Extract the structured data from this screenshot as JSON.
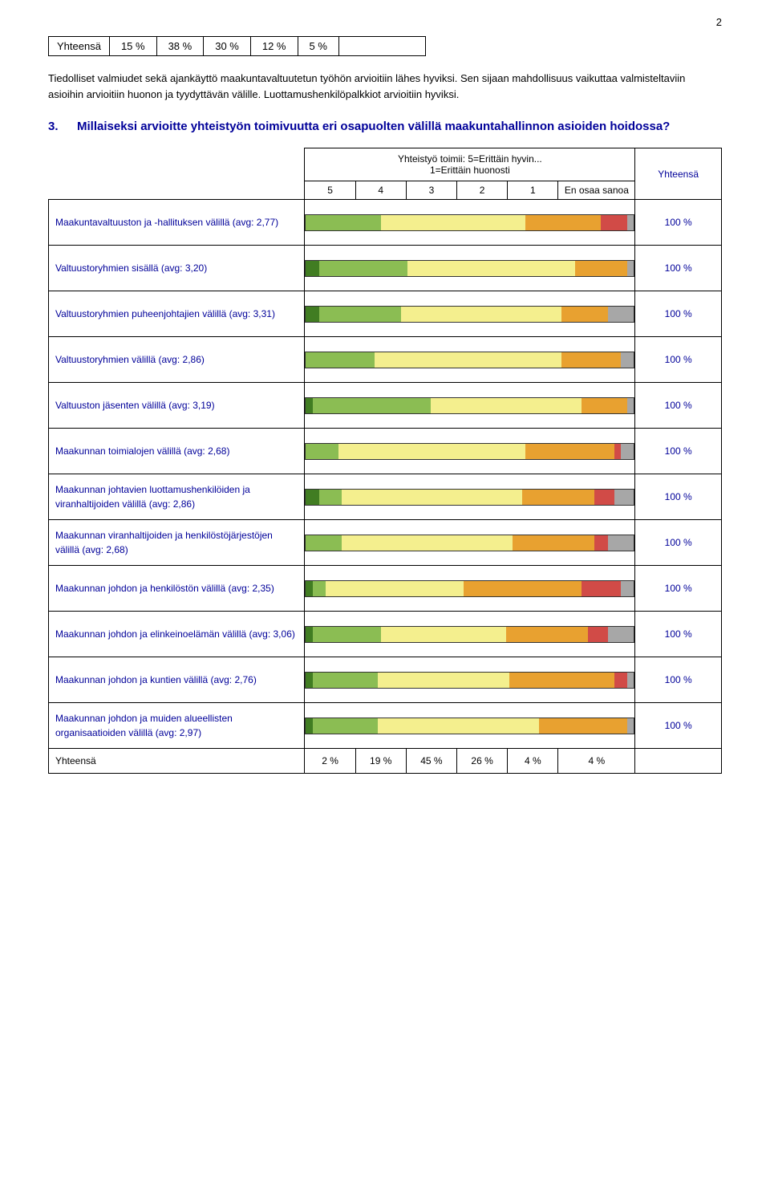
{
  "page_number": "2",
  "simple_table": {
    "label": "Yhteensä",
    "values": [
      "15 %",
      "38 %",
      "30 %",
      "12 %",
      "5 %"
    ]
  },
  "paragraph": "Tiedolliset valmiudet sekä ajankäyttö maakuntavaltuutetun työhön arvioitiin lähes hyviksi. Sen sijaan mahdollisuus vaikuttaa valmisteltaviin asioihin arvioitiin huonon ja tyydyttävän välille. Luottamushenkilöpalkkiot arvioitiin hyviksi.",
  "question": {
    "number": "3.",
    "text": "Millaiseksi arvioitte yhteistyön toimivuutta eri osapuolten välillä maakuntahallinnon asioiden hoidossa?"
  },
  "scale_header_line1": "Yhteistyö toimii: 5=Erittäin hyvin...",
  "scale_header_line2": "1=Erittäin huonosti",
  "scale_labels": [
    "5",
    "4",
    "3",
    "2",
    "1"
  ],
  "donotknow_label": "En osaa sanoa",
  "total_header": "Yhteensä",
  "colors": {
    "c5": "#417d22",
    "c4": "#8bbd53",
    "c3": "#f4ef8e",
    "c2": "#e8a130",
    "c1": "#d14b47",
    "cdk": "#a7a7a7"
  },
  "rows": [
    {
      "label": "Maakuntavaltuuston ja -hallituksen välillä (avg: 2,77)",
      "segments": [
        0,
        23,
        44,
        23,
        8,
        2
      ],
      "total": "100 %"
    },
    {
      "label": "Valtuustoryhmien sisällä (avg: 3,20)",
      "segments": [
        4,
        27,
        51,
        16,
        0,
        2
      ],
      "total": "100 %"
    },
    {
      "label": "Valtuustoryhmien puheenjohtajien välillä (avg: 3,31)",
      "segments": [
        4,
        25,
        49,
        14,
        0,
        8
      ],
      "total": "100 %"
    },
    {
      "label": "Valtuustoryhmien välillä (avg: 2,86)",
      "segments": [
        0,
        21,
        57,
        18,
        0,
        4
      ],
      "total": "100 %"
    },
    {
      "label": "Valtuuston jäsenten välillä (avg: 3,19)",
      "segments": [
        2,
        36,
        46,
        14,
        0,
        2
      ],
      "total": "100 %"
    },
    {
      "label": "Maakunnan toimialojen välillä (avg: 2,68)",
      "segments": [
        0,
        10,
        57,
        27,
        2,
        4
      ],
      "total": "100 %"
    },
    {
      "label": "Maakunnan johtavien luottamushenkilöiden ja viranhaltijoiden välillä (avg: 2,86)",
      "segments": [
        4,
        7,
        55,
        22,
        6,
        6
      ],
      "total": "100 %"
    },
    {
      "label": "Maakunnan viranhaltijoiden ja henkilöstöjärjestöjen välillä (avg: 2,68)",
      "segments": [
        0,
        11,
        52,
        25,
        4,
        8
      ],
      "total": "100 %"
    },
    {
      "label": "Maakunnan johdon ja henkilöstön välillä (avg: 2,35)",
      "segments": [
        2,
        4,
        42,
        36,
        12,
        4
      ],
      "total": "100 %"
    },
    {
      "label": "Maakunnan johdon ja elinkeinoelämän välillä (avg: 3,06)",
      "segments": [
        2,
        21,
        38,
        25,
        6,
        8
      ],
      "total": "100 %"
    },
    {
      "label": "Maakunnan johdon ja kuntien välillä (avg: 2,76)",
      "segments": [
        2,
        20,
        40,
        32,
        4,
        2
      ],
      "total": "100 %"
    },
    {
      "label": "Maakunnan johdon ja muiden alueellisten organisaatioiden välillä (avg: 2,97)",
      "segments": [
        2,
        20,
        49,
        27,
        0,
        2
      ],
      "total": "100 %"
    }
  ],
  "totals_row": {
    "label": "Yhteensä",
    "cells": [
      "2 %",
      "19 %",
      "45 %",
      "26 %",
      "4 %",
      "4 %"
    ]
  }
}
